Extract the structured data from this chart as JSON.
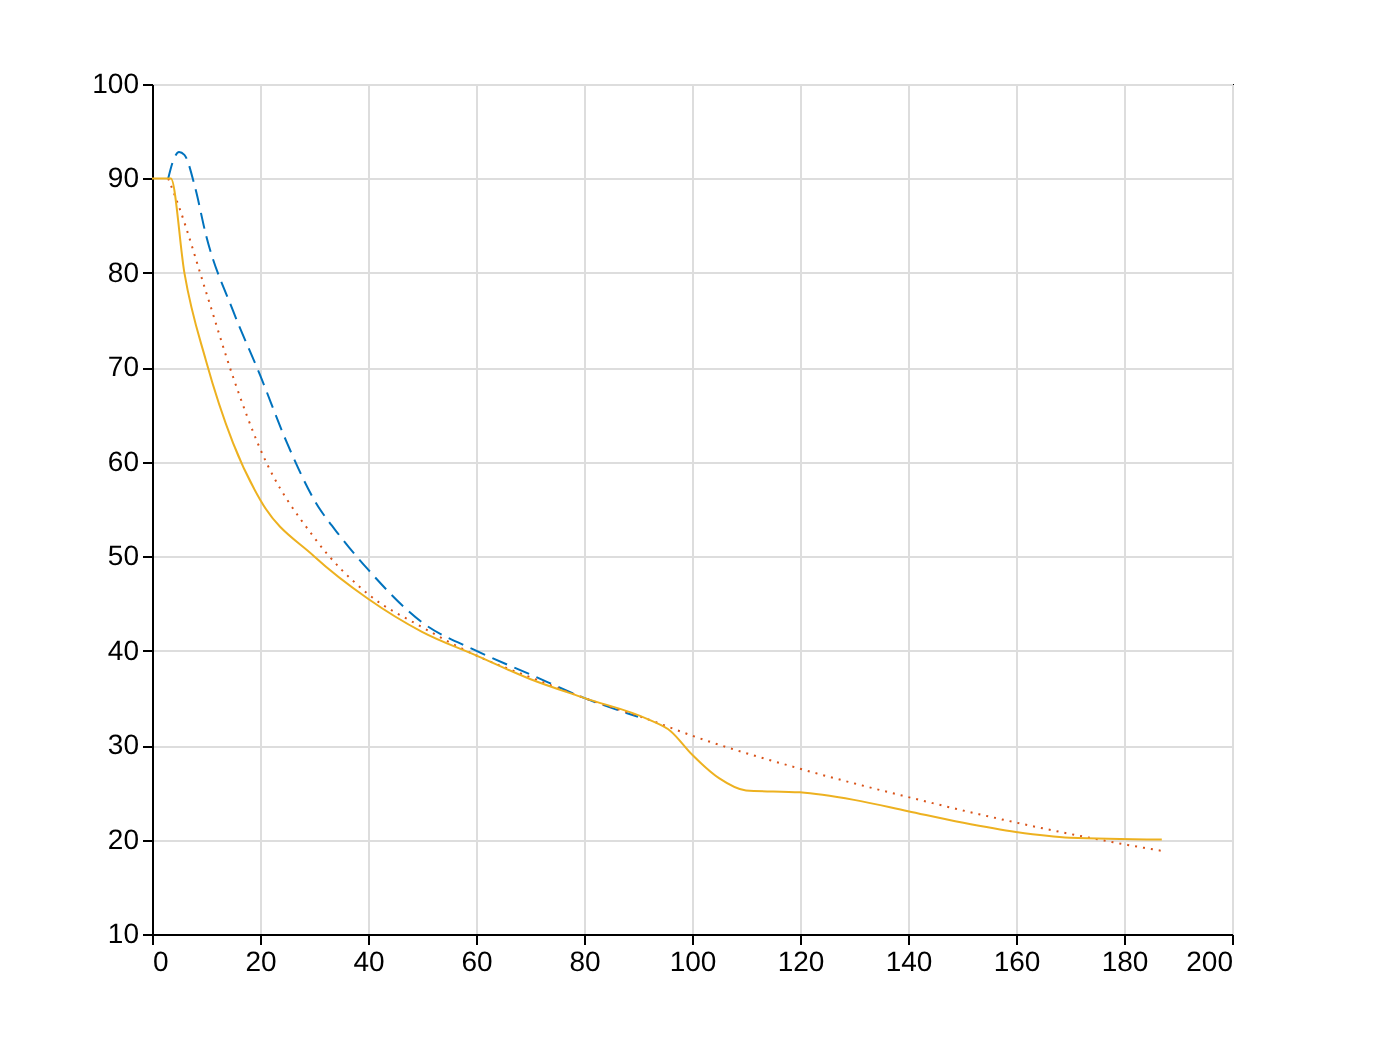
{
  "chart_data": {
    "type": "line",
    "xlim": [
      0,
      200
    ],
    "ylim": [
      10,
      100
    ],
    "xticks": [
      0,
      20,
      40,
      60,
      80,
      100,
      120,
      140,
      160,
      180,
      200
    ],
    "yticks": [
      10,
      20,
      30,
      40,
      50,
      60,
      70,
      80,
      90,
      100
    ],
    "grid": true,
    "marker": "none",
    "series": [
      {
        "color": "#0072bd",
        "line_style": "dashed",
        "x": [
          3,
          4,
          5,
          6,
          8,
          10,
          15,
          20,
          25,
          30,
          35,
          40,
          50,
          60,
          70,
          80,
          90
        ],
        "values": [
          90,
          92,
          92.8,
          92.5,
          89,
          84,
          76,
          69.2,
          62,
          56,
          52,
          48.6,
          43,
          40,
          37.5,
          35,
          33
        ]
      },
      {
        "color": "#d95319",
        "line_style": "dotted",
        "x": [
          3,
          5,
          10,
          15,
          20,
          30,
          40,
          50,
          60,
          70,
          80,
          92,
          100,
          120,
          140,
          160,
          180,
          187
        ],
        "values": [
          90,
          87,
          78,
          69,
          61.4,
          52,
          46,
          42.5,
          39.5,
          37.2,
          35,
          32.7,
          31,
          27.5,
          24.5,
          21.8,
          19.5,
          18.8
        ]
      },
      {
        "color": "#edb120",
        "line_style": "solid",
        "x": [
          0,
          3.5,
          6,
          10,
          15,
          20,
          30,
          40,
          50,
          60,
          70,
          80,
          92,
          96,
          100,
          105,
          110,
          120,
          130,
          140,
          150,
          160,
          170,
          187
        ],
        "values": [
          90,
          90,
          80,
          70.7,
          62,
          56,
          50,
          45.5,
          42,
          39.5,
          37,
          35,
          32.7,
          31.5,
          29,
          26.5,
          25.2,
          25,
          24.2,
          23,
          21.8,
          20.8,
          20.2,
          20
        ]
      }
    ]
  }
}
